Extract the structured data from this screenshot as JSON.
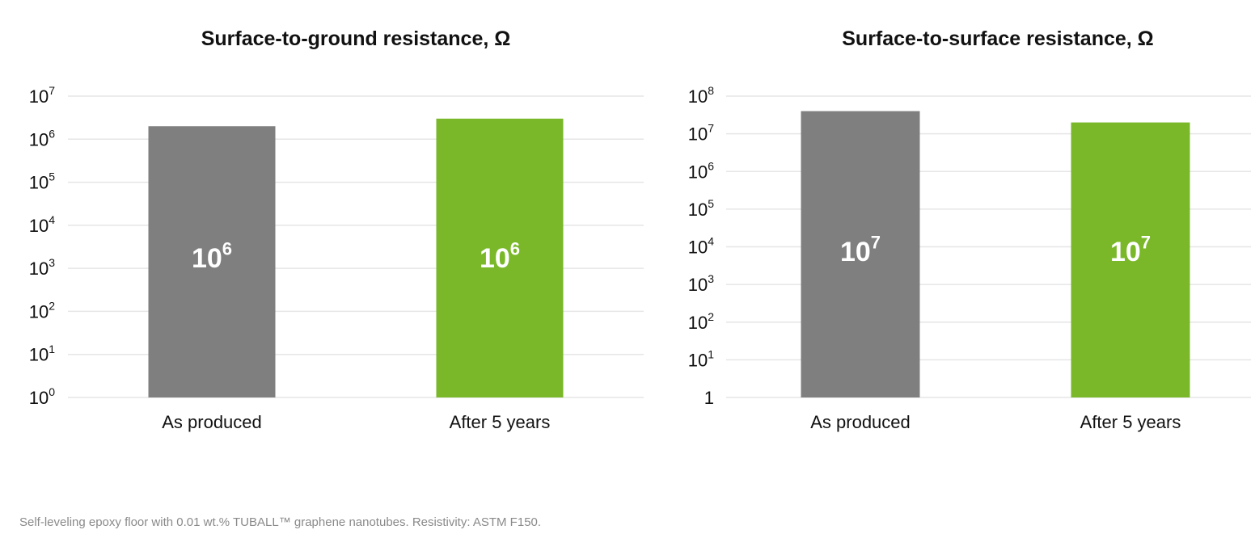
{
  "footnote": "Self-leveling epoxy floor with 0.01 wt.% TUBALL™ graphene nanotubes. Resistivity: ASTM F150.",
  "colors": {
    "grey": "#7f7f7f",
    "green": "#7ab829",
    "gridline": "#e6e6e6"
  },
  "chart_data": [
    {
      "type": "bar",
      "title": "Surface-to-ground resistance, Ω",
      "scale": "log10",
      "categories": [
        "As produced",
        "After 5 years"
      ],
      "values": [
        2000000,
        3000000
      ],
      "bar_labels": [
        {
          "base": "10",
          "exp": "6"
        },
        {
          "base": "10",
          "exp": "6"
        }
      ],
      "bar_colors": [
        "#7f7f7f",
        "#7ab829"
      ],
      "ylim": [
        1,
        10000000
      ],
      "yticks": [
        {
          "base": "10",
          "exp": "0"
        },
        {
          "base": "10",
          "exp": "1"
        },
        {
          "base": "10",
          "exp": "2"
        },
        {
          "base": "10",
          "exp": "3"
        },
        {
          "base": "10",
          "exp": "4"
        },
        {
          "base": "10",
          "exp": "5"
        },
        {
          "base": "10",
          "exp": "6"
        },
        {
          "base": "10",
          "exp": "7"
        }
      ],
      "grid": true
    },
    {
      "type": "bar",
      "title": "Surface-to-surface resistance, Ω",
      "scale": "log10",
      "categories": [
        "As produced",
        "After 5 years"
      ],
      "values": [
        40000000,
        20000000
      ],
      "bar_labels": [
        {
          "base": "10",
          "exp": "7"
        },
        {
          "base": "10",
          "exp": "7"
        }
      ],
      "bar_colors": [
        "#7f7f7f",
        "#7ab829"
      ],
      "ylim": [
        1,
        100000000
      ],
      "yticks": [
        {
          "base": "1",
          "exp": ""
        },
        {
          "base": "10",
          "exp": "1"
        },
        {
          "base": "10",
          "exp": "2"
        },
        {
          "base": "10",
          "exp": "3"
        },
        {
          "base": "10",
          "exp": "4"
        },
        {
          "base": "10",
          "exp": "5"
        },
        {
          "base": "10",
          "exp": "6"
        },
        {
          "base": "10",
          "exp": "7"
        },
        {
          "base": "10",
          "exp": "8"
        }
      ],
      "grid": true
    }
  ]
}
